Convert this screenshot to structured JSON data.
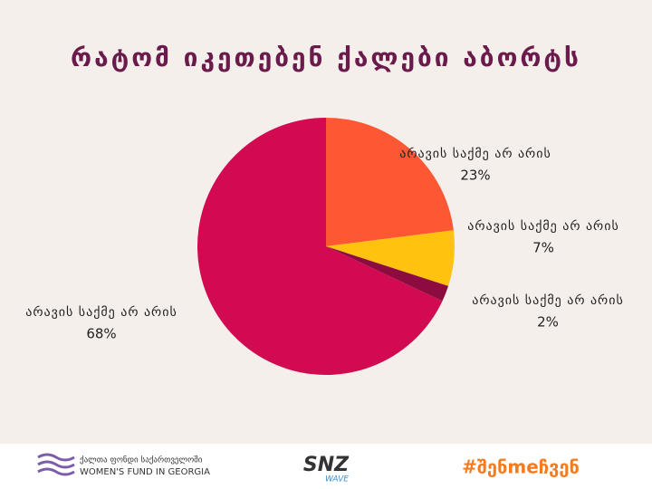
{
  "chart_data": {
    "type": "pie",
    "title": "რატომ იკეთებენ ქალები აბორტს",
    "categories": [
      "არავის საქმე არ არის",
      "არავის საქმე არ არის",
      "არავის საქმე არ არის",
      "არავის საქმე არ არის"
    ],
    "values": [
      23,
      7,
      2,
      68
    ],
    "value_labels": [
      "23%",
      "7%",
      "2%",
      "68%"
    ],
    "colors": [
      "#fe5733",
      "#ffc20e",
      "#8c0c40",
      "#d20a52"
    ]
  },
  "footer": {
    "fund_georgian": "ქალთა ფონდი საქართველოში",
    "fund_english": "WOMEN'S FUND IN GEORGIA",
    "logo_main": "SNZ",
    "logo_sub": "WAVE",
    "hashtag": "#შენmeჩვენ"
  }
}
